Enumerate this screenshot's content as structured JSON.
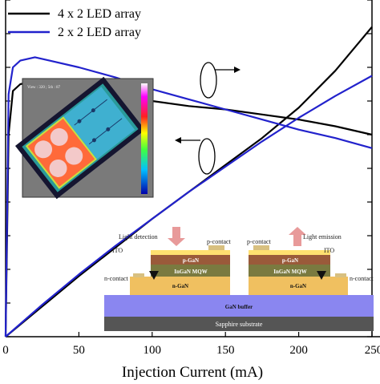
{
  "chart_data": {
    "type": "line",
    "xlabel": "Injection Current (mA)",
    "x_ticks": [
      "0",
      "50",
      "100",
      "150",
      "200",
      "250"
    ],
    "xlim": [
      0,
      250
    ],
    "legend_position": "top-left",
    "grid": false,
    "series": [
      {
        "name": "4 x 2 LED array",
        "color": "#000000",
        "axis": "left",
        "x": [
          0,
          2,
          5,
          10,
          20,
          30,
          50,
          75,
          100,
          125,
          150,
          175,
          200,
          225,
          250
        ],
        "y": [
          0,
          0.6,
          0.73,
          0.75,
          0.76,
          0.755,
          0.74,
          0.72,
          0.7,
          0.685,
          0.675,
          0.66,
          0.645,
          0.625,
          0.6
        ]
      },
      {
        "name": "4 x 2 LED array",
        "color": "#000000",
        "axis": "right",
        "x": [
          0,
          25,
          50,
          75,
          100,
          125,
          150,
          175,
          200,
          225,
          250
        ],
        "y": [
          0,
          0.09,
          0.18,
          0.265,
          0.35,
          0.43,
          0.51,
          0.59,
          0.68,
          0.79,
          0.92
        ]
      },
      {
        "name": "2 x 2 LED array",
        "color": "#2222cc",
        "axis": "left",
        "x": [
          0,
          2,
          5,
          10,
          20,
          30,
          50,
          75,
          100,
          125,
          150,
          175,
          200,
          225,
          250
        ],
        "y": [
          0,
          0.72,
          0.8,
          0.82,
          0.83,
          0.82,
          0.8,
          0.77,
          0.735,
          0.705,
          0.675,
          0.645,
          0.615,
          0.59,
          0.56
        ]
      },
      {
        "name": "2 x 2 LED array",
        "color": "#2222cc",
        "axis": "right",
        "x": [
          0,
          25,
          50,
          75,
          100,
          125,
          150,
          175,
          200,
          225,
          250
        ],
        "y": [
          0,
          0.095,
          0.185,
          0.27,
          0.35,
          0.43,
          0.505,
          0.58,
          0.65,
          0.715,
          0.775
        ]
      }
    ],
    "legend": [
      {
        "label": "4 x 2 LED array",
        "color": "#000000"
      },
      {
        "label": "2 x 2 LED array",
        "color": "#2222cc"
      }
    ],
    "inset_photo": {
      "caption": "View : 320 ; 5th : 87"
    },
    "inset_diagram": {
      "left_label": "Light detection",
      "right_label": "Light emission",
      "p_contact": "p-contact",
      "n_contact": "n-contact",
      "ito": "ITO",
      "p_layer": "p-GaN",
      "mqw_layer": "InGaN MQW",
      "n_layer": "n-GaN",
      "buffer": "GaN buffer",
      "substrate": "Sapphire substrate"
    }
  }
}
